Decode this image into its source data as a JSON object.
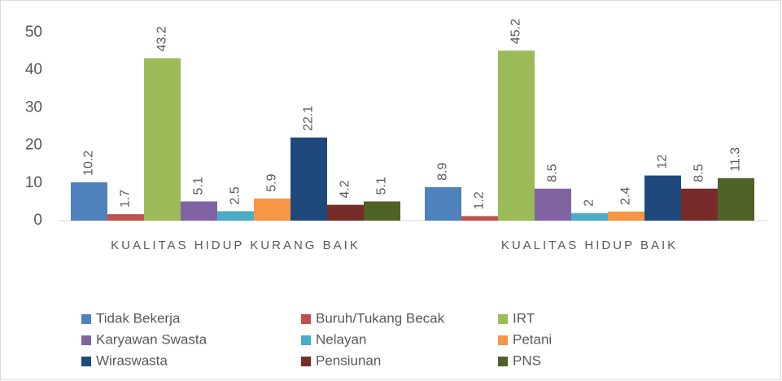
{
  "chart_data": {
    "type": "bar",
    "categories": [
      "KUALITAS HIDUP KURANG BAIK",
      "KUALITAS HIDUP BAIK"
    ],
    "series": [
      {
        "name": "Tidak Bekerja",
        "color": "#4f81bd",
        "values": [
          10.2,
          8.9
        ]
      },
      {
        "name": "Buruh/Tukang Becak",
        "color": "#c0504d",
        "values": [
          1.7,
          1.2
        ]
      },
      {
        "name": "IRT",
        "color": "#9bbb59",
        "values": [
          43.2,
          45.2
        ]
      },
      {
        "name": "Karyawan Swasta",
        "color": "#8064a2",
        "values": [
          5.1,
          8.5
        ]
      },
      {
        "name": "Nelayan",
        "color": "#4bacc6",
        "values": [
          2.5,
          2
        ]
      },
      {
        "name": "Petani",
        "color": "#f79646",
        "values": [
          5.9,
          2.4
        ]
      },
      {
        "name": "Wiraswasta",
        "color": "#1f497d",
        "values": [
          22.1,
          12
        ]
      },
      {
        "name": "Pensiunan",
        "color": "#772c2a",
        "values": [
          4.2,
          8.5
        ]
      },
      {
        "name": "PNS",
        "color": "#4f6228",
        "values": [
          5.1,
          11.3
        ]
      }
    ],
    "ylim": [
      0,
      50
    ],
    "yticks": [
      0,
      10,
      20,
      30,
      40,
      50
    ],
    "grid": false,
    "legend": "bottom"
  }
}
